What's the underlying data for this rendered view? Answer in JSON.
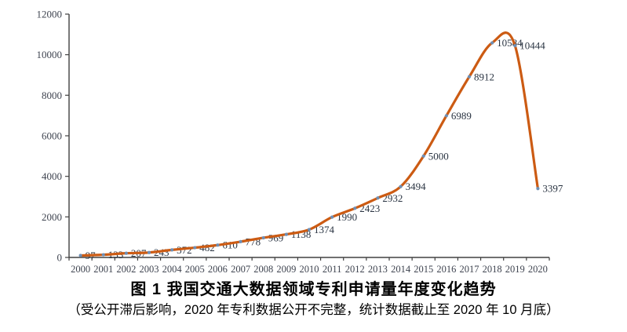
{
  "chart_data": {
    "type": "line",
    "title": "图 1 我国交通大数据领域专利申请量年度变化趋势",
    "subtitle": "（受公开滞后影响，2020 年专利数据公开不完整，统计数据截止至 2020 年 10 月底）",
    "categories": [
      "2000",
      "2001",
      "2002",
      "2003",
      "2004",
      "2005",
      "2006",
      "2007",
      "2008",
      "2009",
      "2010",
      "2011",
      "2012",
      "2013",
      "2014",
      "2015",
      "2016",
      "2017",
      "2018",
      "2019",
      "2020"
    ],
    "values": [
      97,
      133,
      207,
      243,
      372,
      482,
      610,
      778,
      969,
      1138,
      1374,
      1990,
      2423,
      2932,
      3494,
      5000,
      6989,
      8912,
      10584,
      10444,
      3397
    ],
    "xlabel": "",
    "ylabel": "",
    "ylim": [
      0,
      12000
    ],
    "yticks": [
      0,
      2000,
      4000,
      6000,
      8000,
      10000,
      12000
    ],
    "grid": "off",
    "legend": "none",
    "data_labels": "on",
    "smooth_line": true,
    "colors": {
      "line": "#CC5B13",
      "marker": "#6E8FB5",
      "data_label": "#2A3442",
      "axis": "#404040",
      "tick_label": "#3F4450"
    }
  }
}
